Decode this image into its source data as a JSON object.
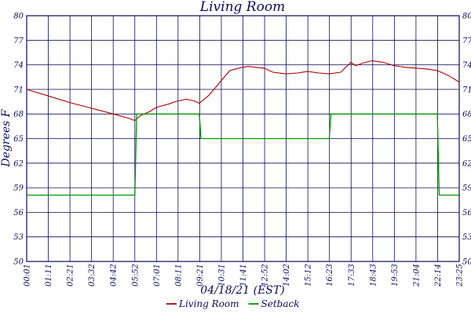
{
  "chart_data": {
    "type": "line",
    "title": "Living Room",
    "xlabel": "04/18/21 (EST)",
    "ylabel": "Degrees F",
    "x_ticks": [
      "00:01",
      "01:11",
      "02:21",
      "03:32",
      "04:42",
      "05:52",
      "07:01",
      "08:11",
      "09:21",
      "10:31",
      "11:41",
      "12:52",
      "14:02",
      "15:12",
      "16:23",
      "17:33",
      "18:43",
      "19:53",
      "21:04",
      "22:14",
      "23:25"
    ],
    "y_ticks": [
      "50",
      "53",
      "56",
      "59",
      "62",
      "65",
      "68",
      "71",
      "74",
      "77",
      "80"
    ],
    "ylim": [
      50,
      80
    ],
    "grid": true,
    "legend_position": "bottom-center",
    "series": [
      {
        "name": "Living Room",
        "color": "#aa0000",
        "x": [
          "00:01",
          "01:11",
          "02:21",
          "03:32",
          "04:42",
          "05:30",
          "05:52",
          "06:10",
          "06:40",
          "07:01",
          "07:40",
          "08:11",
          "08:40",
          "09:05",
          "09:21",
          "09:50",
          "10:31",
          "11:00",
          "11:41",
          "12:00",
          "12:52",
          "13:20",
          "14:02",
          "14:40",
          "15:12",
          "15:50",
          "16:23",
          "17:00",
          "17:33",
          "17:50",
          "18:10",
          "18:43",
          "19:20",
          "19:53",
          "20:30",
          "21:04",
          "21:40",
          "22:14",
          "22:50",
          "23:25"
        ],
        "y": [
          71.0,
          70.2,
          69.4,
          68.7,
          68.0,
          67.5,
          67.2,
          67.8,
          68.3,
          68.8,
          69.2,
          69.6,
          69.8,
          69.6,
          69.3,
          70.2,
          72.0,
          73.3,
          73.7,
          73.8,
          73.6,
          73.1,
          72.9,
          73.0,
          73.2,
          73.0,
          72.9,
          73.1,
          74.3,
          73.9,
          74.2,
          74.5,
          74.3,
          73.9,
          73.7,
          73.6,
          73.5,
          73.3,
          72.7,
          71.9
        ]
      },
      {
        "name": "Setback",
        "color": "#009900",
        "x": [
          "00:01",
          "05:52",
          "05:58",
          "09:21",
          "09:27",
          "16:23",
          "16:29",
          "22:14",
          "22:20",
          "23:25"
        ],
        "y": [
          58.1,
          58.1,
          68.0,
          68.0,
          65.0,
          65.0,
          68.0,
          68.0,
          58.1,
          58.1
        ]
      }
    ]
  }
}
